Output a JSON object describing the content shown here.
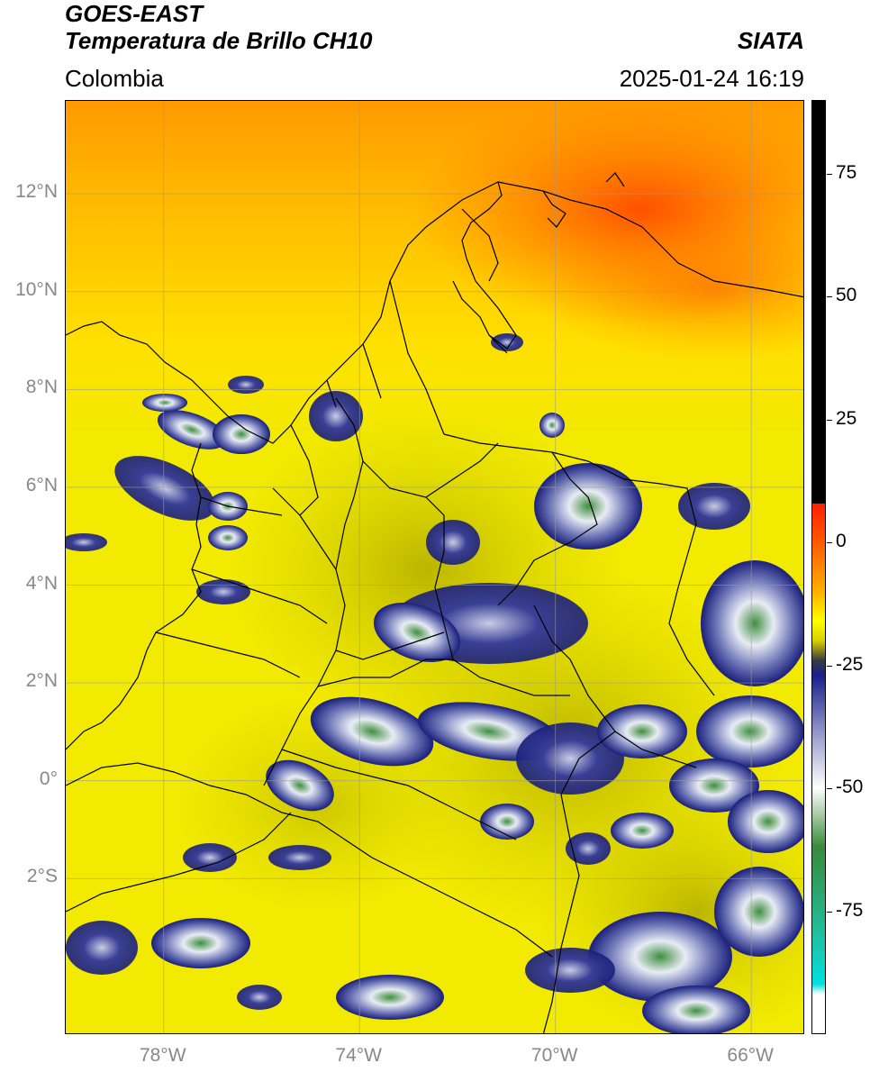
{
  "header": {
    "satellite": "GOES-EAST",
    "product": "Temperatura de Brillo CH10",
    "region": "Colombia",
    "source": "SIATA",
    "datetime": "2025-01-24 16:19"
  },
  "map": {
    "lat_range": [
      -5.2,
      13.9
    ],
    "lon_range": [
      -80.0,
      -64.9
    ],
    "lat_ticks": [
      {
        "value": 12,
        "label": "12°N"
      },
      {
        "value": 10,
        "label": "10°N"
      },
      {
        "value": 8,
        "label": "8°N"
      },
      {
        "value": 6,
        "label": "6°N"
      },
      {
        "value": 4,
        "label": "4°N"
      },
      {
        "value": 2,
        "label": "2°N"
      },
      {
        "value": 0,
        "label": "0°"
      },
      {
        "value": -2,
        "label": "2°S"
      }
    ],
    "lon_ticks": [
      {
        "value": -78,
        "label": "78°W"
      },
      {
        "value": -74,
        "label": "74°W"
      },
      {
        "value": -70,
        "label": "70°W"
      },
      {
        "value": -66,
        "label": "66°W"
      }
    ],
    "colors": {
      "background_yellow": "#f2ea00",
      "north_orange": "#ffa800",
      "deep_orange": "#ff5a00",
      "olive": "#b8b400",
      "navy": "#1a1f7a",
      "white_cloud": "#e8ecf4",
      "green_core": "#3a8a3a"
    }
  },
  "colorbar": {
    "range": [
      -100,
      90
    ],
    "ticks": [
      {
        "value": 75,
        "label": "75"
      },
      {
        "value": 50,
        "label": "50"
      },
      {
        "value": 25,
        "label": "25"
      },
      {
        "value": 0,
        "label": "0"
      },
      {
        "value": -25,
        "label": "-25"
      },
      {
        "value": -50,
        "label": "-50"
      },
      {
        "value": -75,
        "label": "-75"
      }
    ]
  }
}
